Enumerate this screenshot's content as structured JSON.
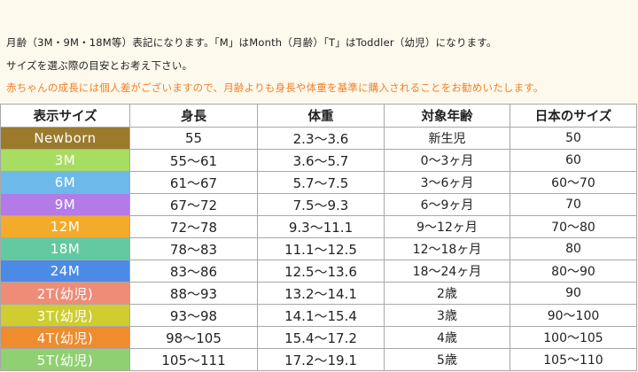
{
  "notes": {
    "line1": "月齢（3M・9M・18M等）表記になります。「M」はMonth（月齢）「T」はToddler（幼児）になります。",
    "line2": "サイズを選ぶ際の目安とお考え下さい。",
    "line3": "赤ちゃんの成長には個人差がございますので、月齢よりも身長や体重を基準に購入されることをお勧めいたします。",
    "line3_color": "#f2802a"
  },
  "table": {
    "headers": [
      "表示サイズ",
      "身長",
      "体重",
      "対象年齢",
      "日本のサイズ"
    ],
    "rows": [
      {
        "label": "Newborn",
        "color": "#9b7a2c",
        "height": "55",
        "weight": "2.3～3.6",
        "age": "新生児",
        "jp_size": "50"
      },
      {
        "label": "3M",
        "color": "#a9dc63",
        "height": "55～61",
        "weight": "3.6～5.7",
        "age": "0～3ヶ月",
        "jp_size": "60"
      },
      {
        "label": "6M",
        "color": "#6cb9ea",
        "height": "61～67",
        "weight": "5.7～7.5",
        "age": "3～6ヶ月",
        "jp_size": "60～70"
      },
      {
        "label": "9M",
        "color": "#b27be8",
        "height": "67～72",
        "weight": "7.5～9.3",
        "age": "6～9ヶ月",
        "jp_size": "70"
      },
      {
        "label": "12M",
        "color": "#f4aa2b",
        "height": "72～78",
        "weight": "9.3～11.1",
        "age": "9～12ヶ月",
        "jp_size": "70～80"
      },
      {
        "label": "18M",
        "color": "#63c9a0",
        "height": "78～83",
        "weight": "11.1～12.5",
        "age": "12～18ヶ月",
        "jp_size": "80"
      },
      {
        "label": "24M",
        "color": "#4b8be6",
        "height": "83～86",
        "weight": "12.5～13.6",
        "age": "18～24ヶ月",
        "jp_size": "80～90"
      },
      {
        "label": "2T(幼児)",
        "color": "#ee8c78",
        "height": "88～93",
        "weight": "13.2～14.1",
        "age": "2歳",
        "jp_size": "90"
      },
      {
        "label": "3T(幼児)",
        "color": "#cfcd2f",
        "height": "93～98",
        "weight": "14.1～15.4",
        "age": "3歳",
        "jp_size": "90～100"
      },
      {
        "label": "4T(幼児)",
        "color": "#ee8c2e",
        "height": "98～105",
        "weight": "15.4～17.2",
        "age": "4歳",
        "jp_size": "100～105"
      },
      {
        "label": "5T(幼児)",
        "color": "#8fd072",
        "height": "105～111",
        "weight": "17.2～19.1",
        "age": "5歳",
        "jp_size": "105～110"
      }
    ]
  }
}
